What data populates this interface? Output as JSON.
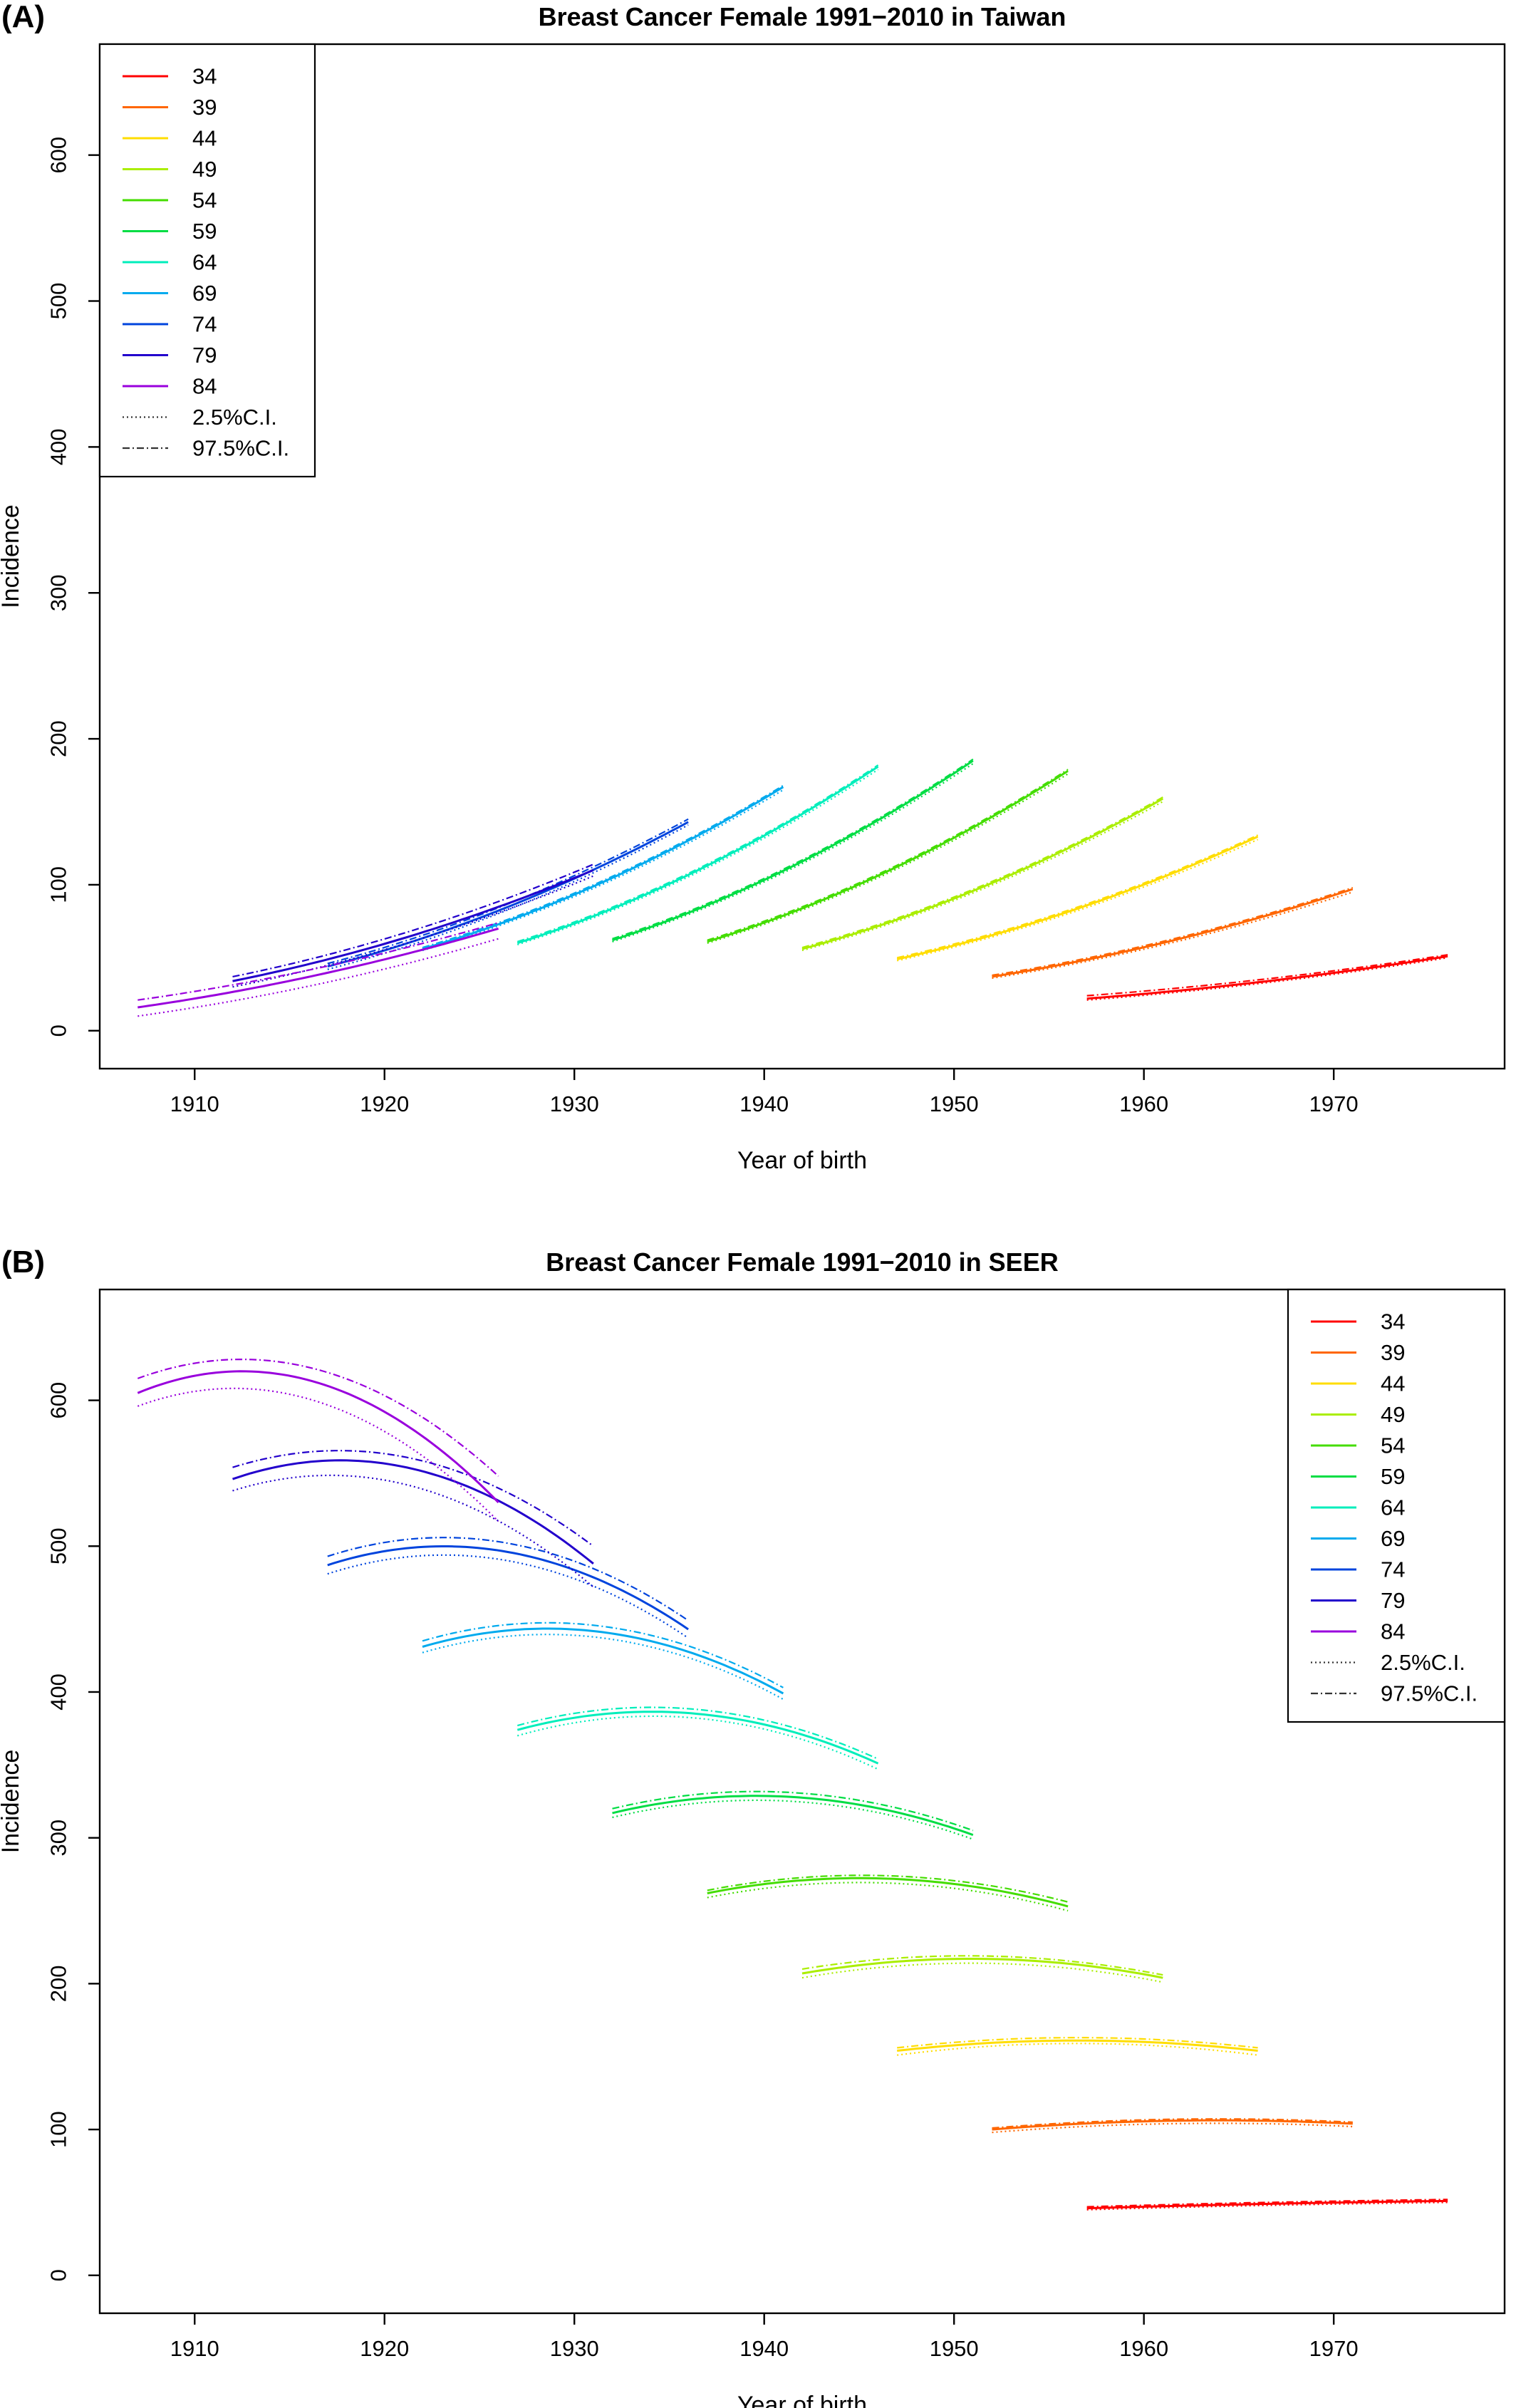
{
  "chart_data": [
    {
      "type": "line",
      "panel_label": "(A)",
      "title": "Breast Cancer Female 1991−2010 in Taiwan",
      "xlabel": "Year of birth",
      "ylabel": "Incidence",
      "xlim": [
        1905,
        1979
      ],
      "ylim": [
        -26,
        676
      ],
      "x_ticks": [
        "1910",
        "1920",
        "1930",
        "1940",
        "1950",
        "1960",
        "1970"
      ],
      "y_ticks": [
        "0",
        "100",
        "200",
        "300",
        "400",
        "500",
        "600"
      ],
      "grid": false,
      "legend_position": "top-left",
      "ci_legend": [
        "2.5%C.I.",
        "97.5%C.I."
      ],
      "series": [
        {
          "name": "34",
          "color": "#FF0000",
          "x": [
            1957,
            1976
          ],
          "y": [
            22,
            51
          ],
          "ci_lower": [
            21,
            50
          ],
          "ci_upper": [
            24,
            52
          ]
        },
        {
          "name": "39",
          "color": "#FF6600",
          "x": [
            1952,
            1971
          ],
          "y": [
            37,
            97
          ],
          "ci_lower": [
            36,
            95
          ],
          "ci_upper": [
            38,
            98
          ]
        },
        {
          "name": "44",
          "color": "#FFDD00",
          "x": [
            1947,
            1966
          ],
          "y": [
            49,
            133
          ],
          "ci_lower": [
            48,
            131
          ],
          "ci_upper": [
            50,
            134
          ]
        },
        {
          "name": "49",
          "color": "#AAEE00",
          "x": [
            1942,
            1961
          ],
          "y": [
            56,
            159
          ],
          "ci_lower": [
            55,
            157
          ],
          "ci_upper": [
            57,
            160
          ]
        },
        {
          "name": "54",
          "color": "#44DD00",
          "x": [
            1937,
            1956
          ],
          "y": [
            61,
            178
          ],
          "ci_lower": [
            60,
            176
          ],
          "ci_upper": [
            62,
            179
          ]
        },
        {
          "name": "59",
          "color": "#00DD44",
          "x": [
            1932,
            1951
          ],
          "y": [
            62,
            185
          ],
          "ci_lower": [
            61,
            183
          ],
          "ci_upper": [
            63,
            186
          ]
        },
        {
          "name": "64",
          "color": "#00EEBB",
          "x": [
            1927,
            1946
          ],
          "y": [
            60,
            181
          ],
          "ci_lower": [
            59,
            179
          ],
          "ci_upper": [
            61,
            182
          ]
        },
        {
          "name": "69",
          "color": "#00AAEE",
          "x": [
            1922,
            1941
          ],
          "y": [
            56,
            167
          ],
          "ci_lower": [
            55,
            165
          ],
          "ci_upper": [
            57,
            168
          ]
        },
        {
          "name": "74",
          "color": "#0044DD",
          "x": [
            1917,
            1936
          ],
          "y": [
            44,
            143
          ],
          "ci_lower": [
            42,
            141
          ],
          "ci_upper": [
            46,
            145
          ]
        },
        {
          "name": "79",
          "color": "#2200CC",
          "x": [
            1912,
            1931
          ],
          "y": [
            34,
            110
          ],
          "ci_lower": [
            30,
            106
          ],
          "ci_upper": [
            37,
            114
          ]
        },
        {
          "name": "84",
          "color": "#9900DD",
          "x": [
            1907,
            1926
          ],
          "y": [
            16,
            70
          ],
          "ci_lower": [
            10,
            63
          ],
          "ci_upper": [
            21,
            74
          ]
        }
      ]
    },
    {
      "type": "line",
      "panel_label": "(B)",
      "title": "Breast Cancer Female 1991−2010 in SEER",
      "xlabel": "Year of birth",
      "ylabel": "Incidence",
      "xlim": [
        1905,
        1979
      ],
      "ylim": [
        -26,
        676
      ],
      "x_ticks": [
        "1910",
        "1920",
        "1930",
        "1940",
        "1950",
        "1960",
        "1970"
      ],
      "y_ticks": [
        "0",
        "100",
        "200",
        "300",
        "400",
        "500",
        "600"
      ],
      "grid": false,
      "legend_position": "top-right",
      "ci_legend": [
        "2.5%C.I.",
        "97.5%C.I."
      ],
      "series": [
        {
          "name": "34",
          "color": "#FF0000",
          "x": [
            1957,
            1966.5,
            1976
          ],
          "y": [
            46,
            49,
            51
          ],
          "ci_lower": [
            45,
            48,
            50
          ],
          "ci_upper": [
            47,
            50,
            52
          ]
        },
        {
          "name": "39",
          "color": "#FF6600",
          "x": [
            1952,
            1961.5,
            1971
          ],
          "y": [
            100,
            106,
            104
          ],
          "ci_lower": [
            98,
            104,
            102
          ],
          "ci_upper": [
            101,
            107,
            105
          ]
        },
        {
          "name": "44",
          "color": "#FFDD00",
          "x": [
            1947,
            1956.5,
            1966
          ],
          "y": [
            154,
            161,
            154
          ],
          "ci_lower": [
            151,
            159,
            151
          ],
          "ci_upper": [
            156,
            163,
            156
          ]
        },
        {
          "name": "49",
          "color": "#AAEE00",
          "x": [
            1942,
            1951.5,
            1961
          ],
          "y": [
            207,
            217,
            204
          ],
          "ci_lower": [
            204,
            214,
            201
          ],
          "ci_upper": [
            210,
            219,
            206
          ]
        },
        {
          "name": "54",
          "color": "#44DD00",
          "x": [
            1937,
            1946.5,
            1956
          ],
          "y": [
            262,
            272,
            253
          ],
          "ci_lower": [
            259,
            269,
            250
          ],
          "ci_upper": [
            264,
            274,
            256
          ]
        },
        {
          "name": "59",
          "color": "#00DD44",
          "x": [
            1932,
            1941.5,
            1951
          ],
          "y": [
            317,
            328,
            302
          ],
          "ci_lower": [
            314,
            325,
            299
          ],
          "ci_upper": [
            320,
            331,
            305
          ]
        },
        {
          "name": "64",
          "color": "#00EEBB",
          "x": [
            1927,
            1936.5,
            1946
          ],
          "y": [
            374,
            385,
            351
          ],
          "ci_lower": [
            370,
            382,
            347
          ],
          "ci_upper": [
            377,
            388,
            354
          ]
        },
        {
          "name": "69",
          "color": "#00AAEE",
          "x": [
            1922,
            1931.5,
            1941
          ],
          "y": [
            431,
            441,
            399
          ],
          "ci_lower": [
            427,
            437,
            395
          ],
          "ci_upper": [
            435,
            445,
            403
          ]
        },
        {
          "name": "74",
          "color": "#0044DD",
          "x": [
            1917,
            1926.5,
            1936
          ],
          "y": [
            487,
            496,
            443
          ],
          "ci_lower": [
            481,
            490,
            437
          ],
          "ci_upper": [
            493,
            502,
            449
          ]
        },
        {
          "name": "79",
          "color": "#2200CC",
          "x": [
            1912,
            1921.5,
            1931
          ],
          "y": [
            546,
            553,
            488
          ],
          "ci_lower": [
            538,
            541,
            472
          ],
          "ci_upper": [
            554,
            560,
            500
          ]
        },
        {
          "name": "84",
          "color": "#9900DD",
          "x": [
            1907,
            1916.5,
            1926
          ],
          "y": [
            605,
            612,
            530
          ],
          "ci_lower": [
            596,
            599,
            517
          ],
          "ci_upper": [
            615,
            621,
            548
          ]
        }
      ]
    }
  ]
}
